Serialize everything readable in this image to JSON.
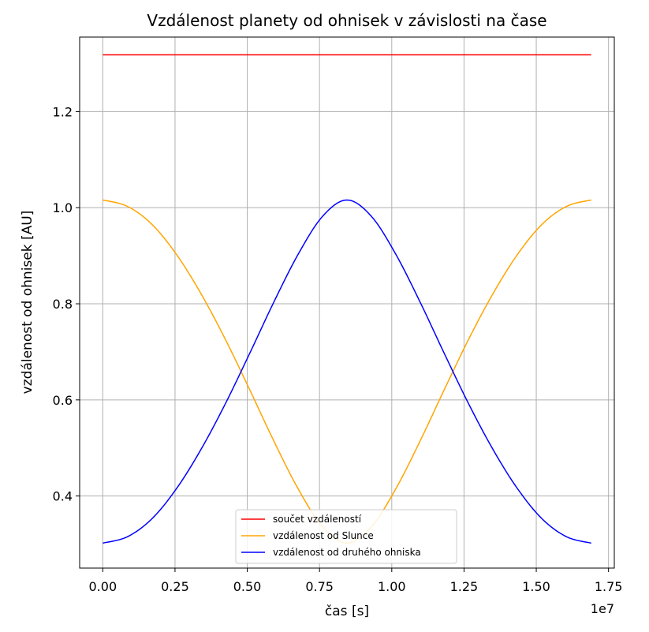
{
  "chart_data": {
    "type": "line",
    "title": "Vzdálenost planety od ohnisek v závislosti na čase",
    "xlabel": "čas [s]",
    "ylabel": "vzdálenost od ohnisek [AU]",
    "x_offset_label": "1e7",
    "xlim": [
      -0.08,
      1.77
    ],
    "ylim": [
      0.25,
      1.355
    ],
    "x_ticks": [
      0.0,
      0.25,
      0.5,
      0.75,
      1.0,
      1.25,
      1.5,
      1.75
    ],
    "x_tick_labels": [
      "0.00",
      "0.25",
      "0.50",
      "0.75",
      "1.00",
      "1.25",
      "1.50",
      "1.75"
    ],
    "y_ticks": [
      0.4,
      0.6,
      0.8,
      1.0,
      1.2
    ],
    "y_tick_labels": [
      "0.4",
      "0.6",
      "0.8",
      "1.0",
      "1.2"
    ],
    "grid": true,
    "legend_position": "bottom-center",
    "x": [
      0.0,
      0.0845,
      0.169,
      0.2535,
      0.338,
      0.4225,
      0.507,
      0.5915,
      0.676,
      0.7605,
      0.845,
      0.9295,
      1.014,
      1.0985,
      1.183,
      1.2675,
      1.352,
      1.4365,
      1.521,
      1.6055,
      1.69
    ],
    "series": [
      {
        "name": "součet vzdáleností",
        "color": "#ff0000",
        "values": [
          1.318,
          1.318,
          1.318,
          1.318,
          1.318,
          1.318,
          1.318,
          1.318,
          1.318,
          1.318,
          1.318,
          1.318,
          1.318,
          1.318,
          1.318,
          1.318,
          1.318,
          1.318,
          1.318,
          1.318,
          1.318
        ]
      },
      {
        "name": "vzdálenost od Slunce",
        "color": "#ffa500",
        "values": [
          1.016,
          1.003,
          0.966,
          0.904,
          0.823,
          0.728,
          0.623,
          0.515,
          0.415,
          0.336,
          0.302,
          0.336,
          0.415,
          0.515,
          0.623,
          0.728,
          0.823,
          0.904,
          0.966,
          1.003,
          1.016
        ]
      },
      {
        "name": "vzdálenost od druhého ohniska",
        "color": "#0000ff",
        "values": [
          0.302,
          0.315,
          0.352,
          0.414,
          0.495,
          0.59,
          0.695,
          0.803,
          0.903,
          0.982,
          1.016,
          0.982,
          0.903,
          0.803,
          0.695,
          0.59,
          0.495,
          0.414,
          0.352,
          0.315,
          0.302
        ]
      }
    ]
  }
}
